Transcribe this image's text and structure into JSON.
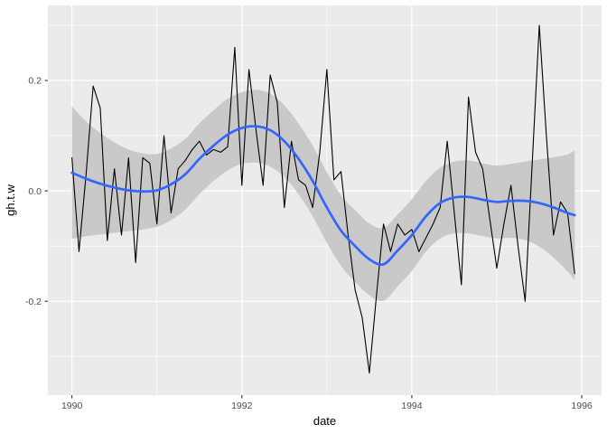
{
  "figure": {
    "background": "#FFFFFF",
    "panel_background": "#EBEBEB",
    "gridline_color": "#FFFFFF",
    "axis_text_color": "#4D4D4D",
    "axis_title_color": "#000000",
    "tick_mark_color": "#333333",
    "series_line_color": "#000000",
    "smooth_line_color": "#3366FF",
    "band_fill_color": "#C9C9C9"
  },
  "chart_data": {
    "type": "line",
    "title": "",
    "xlabel": "date",
    "ylabel": "gh.t.w",
    "grid": true,
    "legend": "none",
    "xlim": [
      1989.717,
      1996.233
    ],
    "ylim": [
      -0.37,
      0.336
    ],
    "x_ticks": {
      "major": [
        1990,
        1992,
        1994,
        1996
      ],
      "minor": [
        1991,
        1993,
        1995
      ],
      "labels": [
        "1990",
        "1992",
        "1994",
        "1996"
      ]
    },
    "y_ticks": {
      "major": [
        0.2,
        0.0,
        -0.2
      ],
      "minor": [
        0.3,
        0.1,
        -0.1,
        -0.3
      ],
      "labels": [
        "0.2",
        "0.0",
        "-0.2"
      ]
    },
    "series": [
      {
        "name": "gh.t.w",
        "color": "#000000",
        "start_year": 1990,
        "frequency": "monthly",
        "values": [
          0.06,
          -0.11,
          0.03,
          0.19,
          0.15,
          -0.09,
          0.04,
          -0.08,
          0.06,
          -0.13,
          0.06,
          0.05,
          -0.06,
          0.1,
          -0.04,
          0.04,
          0.055,
          0.075,
          0.09,
          0.065,
          0.075,
          0.07,
          0.08,
          0.26,
          0.01,
          0.22,
          0.11,
          0.01,
          0.21,
          0.16,
          -0.03,
          0.09,
          0.02,
          0.01,
          -0.03,
          0.07,
          0.22,
          0.02,
          0.035,
          -0.08,
          -0.18,
          -0.23,
          -0.33,
          -0.19,
          -0.06,
          -0.11,
          -0.06,
          -0.08,
          -0.07,
          -0.11,
          -0.085,
          -0.06,
          -0.03,
          0.09,
          -0.04,
          -0.17,
          0.17,
          0.07,
          0.04,
          -0.05,
          -0.14,
          -0.06,
          0.01,
          -0.1,
          -0.2,
          0.05,
          0.3,
          0.1,
          -0.08,
          -0.02,
          -0.04,
          -0.15
        ]
      }
    ],
    "smooth": {
      "name": "loess-smooth",
      "color": "#3366FF",
      "x": [
        1990,
        1990.167,
        1990.333,
        1990.5,
        1990.667,
        1990.833,
        1991,
        1991.167,
        1991.333,
        1991.5,
        1991.667,
        1991.833,
        1992,
        1992.167,
        1992.333,
        1992.5,
        1992.667,
        1992.833,
        1993,
        1993.167,
        1993.333,
        1993.5,
        1993.667,
        1993.833,
        1994,
        1994.167,
        1994.333,
        1994.5,
        1994.667,
        1994.833,
        1995,
        1995.167,
        1995.333,
        1995.5,
        1995.667,
        1995.833,
        1995.917
      ],
      "y": [
        0.033,
        0.022,
        0.013,
        0.006,
        0.001,
        -0.001,
        0.001,
        0.012,
        0.03,
        0.058,
        0.082,
        0.102,
        0.114,
        0.117,
        0.11,
        0.09,
        0.058,
        0.018,
        -0.03,
        -0.072,
        -0.1,
        -0.124,
        -0.133,
        -0.108,
        -0.08,
        -0.046,
        -0.022,
        -0.012,
        -0.011,
        -0.016,
        -0.02,
        -0.018,
        -0.018,
        -0.022,
        -0.03,
        -0.04,
        -0.044
      ],
      "band_lo": [
        -0.087,
        -0.082,
        -0.079,
        -0.076,
        -0.073,
        -0.07,
        -0.065,
        -0.053,
        -0.034,
        -0.006,
        0.018,
        0.037,
        0.049,
        0.051,
        0.044,
        0.025,
        -0.006,
        -0.046,
        -0.094,
        -0.136,
        -0.165,
        -0.189,
        -0.199,
        -0.173,
        -0.145,
        -0.11,
        -0.086,
        -0.077,
        -0.077,
        -0.082,
        -0.086,
        -0.085,
        -0.089,
        -0.101,
        -0.121,
        -0.146,
        -0.162
      ],
      "band_hi": [
        0.153,
        0.126,
        0.105,
        0.088,
        0.075,
        0.068,
        0.067,
        0.077,
        0.094,
        0.122,
        0.146,
        0.167,
        0.179,
        0.183,
        0.176,
        0.155,
        0.122,
        0.082,
        0.034,
        -0.008,
        -0.035,
        -0.059,
        -0.067,
        -0.043,
        -0.015,
        0.018,
        0.042,
        0.053,
        0.055,
        0.05,
        0.046,
        0.049,
        0.053,
        0.057,
        0.061,
        0.066,
        0.074
      ]
    }
  }
}
